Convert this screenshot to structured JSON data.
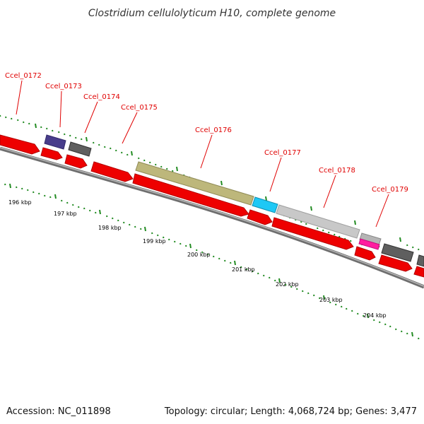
{
  "title": "Clostridium cellulolyticum H10, complete genome",
  "footer": {
    "accession": "Accession: NC_011898",
    "summary": "Topology: circular; Length: 4,068,724 bp; Genes: 3,477"
  },
  "colors": {
    "cds": "#ee0000",
    "label": "#e00000",
    "tick": "#228b22",
    "backbone": "#808080"
  },
  "gene_labels": [
    "Ccel_0172",
    "Ccel_0173",
    "Ccel_0174",
    "Ccel_0175",
    "Ccel_0176",
    "Ccel_0177",
    "Ccel_0178",
    "Ccel_0179"
  ],
  "kbp_labels": [
    "196 kbp",
    "197 kbp",
    "198 kbp",
    "199 kbp",
    "200 kbp",
    "201 kbp",
    "202 kbp",
    "203 kbp",
    "204 kbp"
  ]
}
